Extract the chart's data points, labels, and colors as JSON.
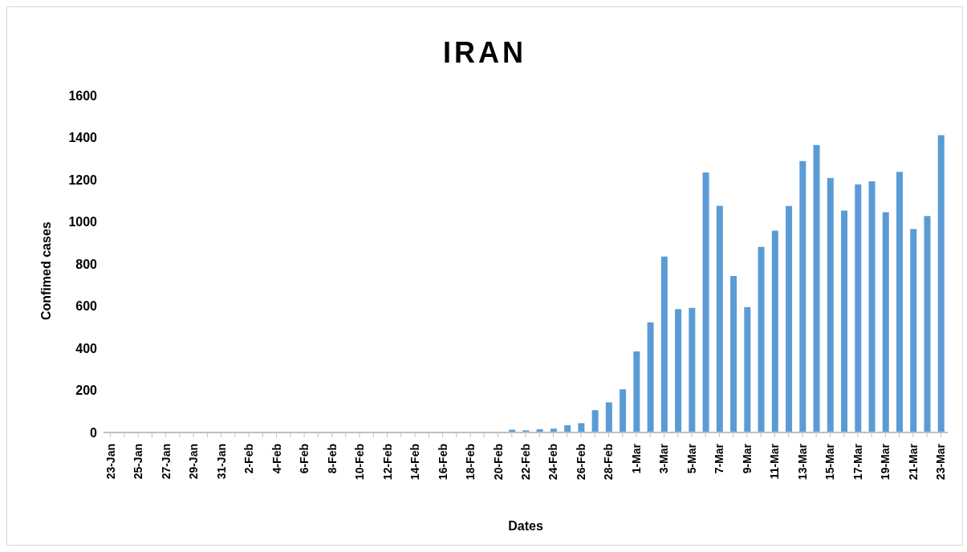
{
  "chart_data": {
    "type": "bar",
    "title": "IRAN",
    "xlabel": "Dates",
    "ylabel": "Confimed cases",
    "categories": [
      "23-Jan",
      null,
      "25-Jan",
      null,
      "27-Jan",
      null,
      "29-Jan",
      null,
      "31-Jan",
      null,
      "2-Feb",
      null,
      "4-Feb",
      null,
      "6-Feb",
      null,
      "8-Feb",
      null,
      "10-Feb",
      null,
      "12-Feb",
      null,
      "14-Feb",
      null,
      "16-Feb",
      null,
      "18-Feb",
      null,
      "20-Feb",
      null,
      "22-Feb",
      null,
      "24-Feb",
      null,
      "26-Feb",
      null,
      "28-Feb",
      null,
      "1-Mar",
      null,
      "3-Mar",
      null,
      "5-Mar",
      null,
      "7-Mar",
      null,
      "9-Mar",
      null,
      "11-Mar",
      null,
      "13-Mar",
      null,
      "15-Mar",
      null,
      "17-Mar",
      null,
      "19-Mar",
      null,
      "21-Mar",
      null,
      "23-Mar"
    ],
    "values": [
      0,
      0,
      0,
      0,
      0,
      0,
      0,
      0,
      0,
      0,
      0,
      0,
      0,
      0,
      0,
      0,
      0,
      0,
      0,
      0,
      0,
      0,
      0,
      0,
      0,
      0,
      0,
      0,
      0,
      13,
      10,
      15,
      18,
      34,
      44,
      106,
      143,
      205,
      385,
      523,
      835,
      586,
      591,
      1234,
      1076,
      743,
      595,
      881,
      958,
      1075,
      1289,
      1365,
      1209,
      1053,
      1178,
      1192,
      1046,
      1237,
      966,
      1028,
      1411
    ],
    "color": "#5b9bd5",
    "ylim": [
      0,
      1600
    ],
    "yticks": [
      0,
      200,
      400,
      600,
      800,
      1000,
      1200,
      1400,
      1600
    ],
    "grid": false,
    "legend": false
  }
}
